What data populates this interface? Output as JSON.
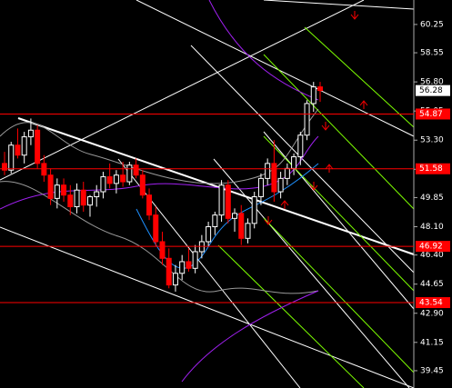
{
  "chart_data": {
    "type": "candlestick",
    "ylim": [
      38.41,
      61.72
    ],
    "yticks": [
      60.25,
      58.55,
      {
        "value": 56.8,
        "label": "56.80"
      },
      55.05,
      {
        "value": 53.3,
        "label": "53.30"
      },
      51.55,
      49.85,
      {
        "value": 48.1,
        "label": "48.10"
      },
      {
        "value": 46.4,
        "label": "46.40"
      },
      44.65,
      {
        "value": 42.9,
        "label": "42.90"
      },
      41.15,
      39.45
    ],
    "up_color": "#ffffff",
    "down_color": "#ff0000",
    "levels": [
      54.87,
      51.58,
      46.92,
      43.54
    ],
    "level_color": "#ff0000",
    "current_price": 56.28,
    "open": [
      51.9,
      51.5,
      53.0,
      52.4,
      53.5,
      53.9,
      51.9,
      51.2,
      49.8,
      50.6,
      50.0,
      49.3,
      50.3,
      49.4,
      49.9,
      50.2,
      51.1,
      50.7,
      51.2,
      50.8,
      51.8,
      51.2,
      50.0,
      48.8,
      47.2,
      46.2,
      44.6,
      45.3,
      46.0,
      45.6,
      46.6,
      47.2,
      48.1,
      48.8,
      50.6,
      48.6,
      48.9,
      47.4,
      48.3,
      49.9,
      51.0,
      51.9,
      50.2,
      51.0,
      51.6,
      52.3,
      53.6,
      55.5,
      56.5
    ],
    "high": [
      52.6,
      53.2,
      54.0,
      53.8,
      54.6,
      54.2,
      52.4,
      51.6,
      51.0,
      51.0,
      50.6,
      50.7,
      50.8,
      50.0,
      50.6,
      51.4,
      51.9,
      51.5,
      52.0,
      52.0,
      52.2,
      51.5,
      50.4,
      49.3,
      47.8,
      46.8,
      45.8,
      46.4,
      46.8,
      47.0,
      47.6,
      48.4,
      49.0,
      50.9,
      50.9,
      49.2,
      49.4,
      48.6,
      50.2,
      51.3,
      52.2,
      53.3,
      51.4,
      51.9,
      52.5,
      53.8,
      55.7,
      56.8,
      56.8
    ],
    "low": [
      51.2,
      51.3,
      52.2,
      51.9,
      53.0,
      51.6,
      50.8,
      49.4,
      49.2,
      49.6,
      48.8,
      48.9,
      49.0,
      48.7,
      49.3,
      49.8,
      50.4,
      50.1,
      50.5,
      50.6,
      51.0,
      49.8,
      48.5,
      46.9,
      45.8,
      44.4,
      44.2,
      44.9,
      45.4,
      45.3,
      46.2,
      46.9,
      47.6,
      48.4,
      48.3,
      47.8,
      47.0,
      47.1,
      48.0,
      49.4,
      50.6,
      49.6,
      49.8,
      50.6,
      51.2,
      51.8,
      53.3,
      55.0,
      55.6
    ],
    "close": [
      51.5,
      53.0,
      52.4,
      53.5,
      53.9,
      51.9,
      51.2,
      49.8,
      50.6,
      50.0,
      49.3,
      50.3,
      49.4,
      49.9,
      50.2,
      51.1,
      50.7,
      51.2,
      50.8,
      51.8,
      51.2,
      50.0,
      48.8,
      47.2,
      46.2,
      44.6,
      45.3,
      46.0,
      45.6,
      46.6,
      47.2,
      48.1,
      48.8,
      50.6,
      48.6,
      48.9,
      47.4,
      48.3,
      49.9,
      51.0,
      51.9,
      50.2,
      51.0,
      51.6,
      52.3,
      53.6,
      55.5,
      56.5,
      56.28
    ]
  }
}
